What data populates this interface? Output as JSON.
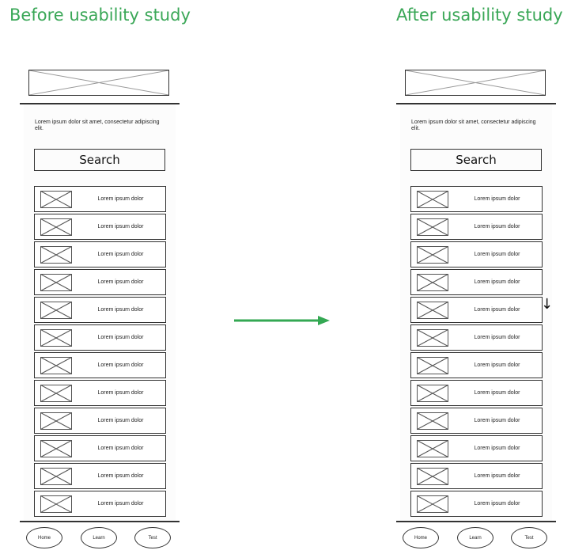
{
  "headings": {
    "before": "Before usability study",
    "after": "After usability study"
  },
  "colors": {
    "heading": "#3aa757",
    "arrow": "#34a853",
    "stroke": "#333333"
  },
  "icons": {
    "hero": "image-placeholder-icon",
    "thumb": "image-placeholder-icon",
    "flow": "arrow-right-icon",
    "scroll": "arrow-down-icon"
  },
  "before": {
    "intro": "Lorem ipsum dolor sit amet, consectetur adipiscing elit.",
    "search_label": "Search",
    "items": [
      "Lorem ipsum dolor",
      "Lorem ipsum dolor",
      "Lorem ipsum dolor",
      "Lorem ipsum dolor",
      "Lorem ipsum dolor",
      "Lorem ipsum dolor",
      "Lorem ipsum dolor",
      "Lorem ipsum dolor",
      "Lorem ipsum dolor",
      "Lorem ipsum dolor",
      "Lorem ipsum dolor",
      "Lorem ipsum dolor"
    ],
    "nav": [
      "Home",
      "Learn",
      "Test"
    ]
  },
  "after": {
    "intro": "Lorem ipsum dolor sit amet, consectetur adipiscing elit.",
    "search_label": "Search",
    "items": [
      "Lorem ipsum dolor",
      "Lorem ipsum dolor",
      "Lorem ipsum dolor",
      "Lorem ipsum dolor",
      "Lorem ipsum dolor",
      "Lorem ipsum dolor",
      "Lorem ipsum dolor",
      "Lorem ipsum dolor",
      "Lorem ipsum dolor",
      "Lorem ipsum dolor",
      "Lorem ipsum dolor",
      "Lorem ipsum dolor"
    ],
    "nav": [
      "Home",
      "Learn",
      "Test"
    ],
    "scroll_indicator": "↓"
  }
}
